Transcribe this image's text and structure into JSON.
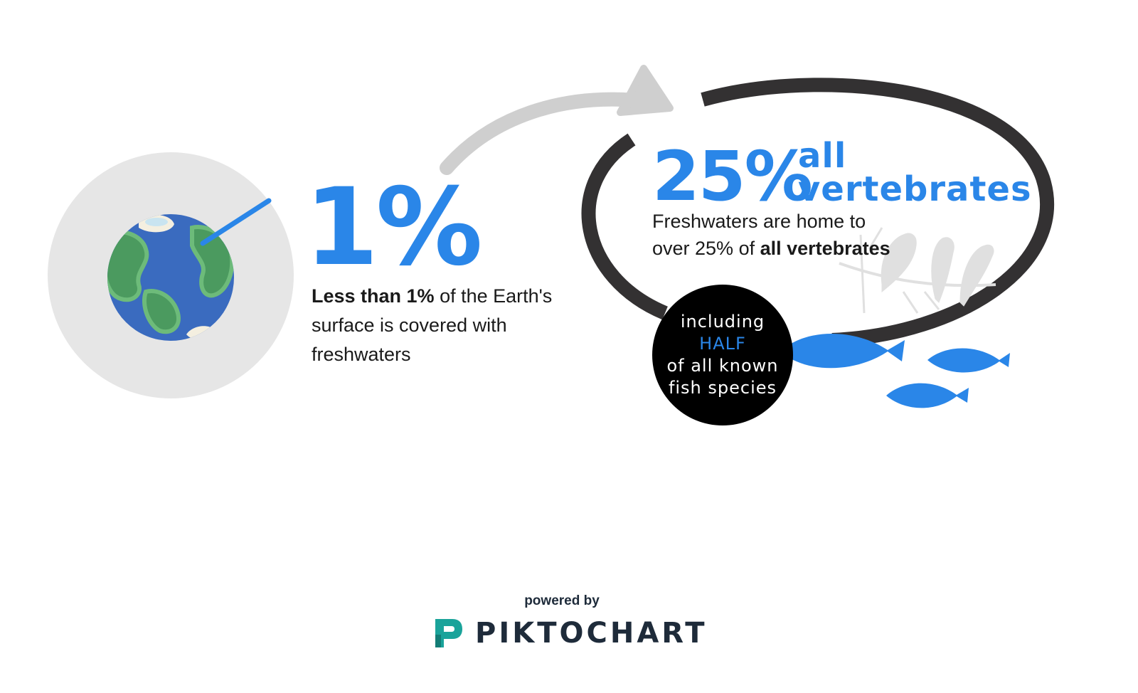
{
  "earth_panel": {
    "stat": "1%",
    "text_bold": "Less than 1%",
    "text_rest": " of the Earth's surface is covered with freshwaters"
  },
  "vertebrates_panel": {
    "stat": "25%",
    "title_line1": "all",
    "title_line2": "vertebrates",
    "text_line1": "Freshwaters are home to",
    "text_line2_prefix": "over 25% of ",
    "text_line2_bold": "all vertebrates"
  },
  "fish_badge": {
    "line1": "including",
    "line2": "HALF",
    "line3": "of all known",
    "line4": "fish species"
  },
  "footer": {
    "powered_by": "powered by",
    "brand": "PIKTOCHART"
  },
  "colors": {
    "accent_blue": "#2a86e8",
    "ocean": "#3a6bbf",
    "land": "#4b9a5f",
    "ring": "#333132",
    "arrow": "#cfcfcf",
    "brand_teal": "#1aa39a"
  },
  "icons": [
    "earth-globe-icon",
    "curved-arrow-icon",
    "birds-on-branch-icon",
    "fish-icon",
    "piktochart-logo-icon"
  ]
}
